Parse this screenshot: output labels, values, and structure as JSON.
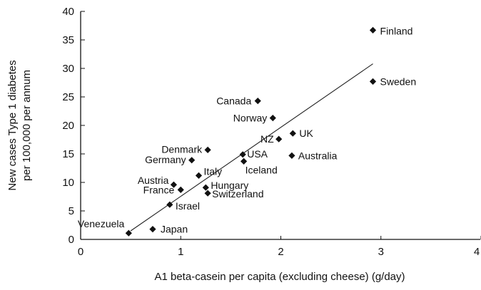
{
  "chart_data": {
    "type": "scatter",
    "title": "",
    "xlabel": "A1 beta-casein per capita (excluding cheese) (g/day)",
    "ylabel_lines": [
      "New cases Type 1 diabetes",
      "per 100,000 per annum"
    ],
    "xlim": [
      0,
      4
    ],
    "ylim": [
      0,
      40
    ],
    "x_ticks": [
      "0",
      "1",
      "2",
      "3",
      "4"
    ],
    "y_ticks": [
      "0",
      "5",
      "10",
      "15",
      "20",
      "25",
      "30",
      "35",
      "40"
    ],
    "grid": false,
    "legend": "none",
    "marker": "diamond",
    "points": [
      {
        "label": "Venezuela",
        "x": 0.48,
        "y": 1.1
      },
      {
        "label": "Japan",
        "x": 0.72,
        "y": 1.8
      },
      {
        "label": "Israel",
        "x": 0.89,
        "y": 6.1
      },
      {
        "label": "Austria",
        "x": 0.93,
        "y": 9.6
      },
      {
        "label": "France",
        "x": 1.0,
        "y": 8.7
      },
      {
        "label": "Germany",
        "x": 1.11,
        "y": 13.9
      },
      {
        "label": "Italy",
        "x": 1.18,
        "y": 11.2
      },
      {
        "label": "Denmark",
        "x": 1.27,
        "y": 15.7
      },
      {
        "label": "Hungary",
        "x": 1.25,
        "y": 9.1
      },
      {
        "label": "Switzerland",
        "x": 1.27,
        "y": 8.1
      },
      {
        "label": "USA",
        "x": 1.62,
        "y": 14.9
      },
      {
        "label": "Iceland",
        "x": 1.63,
        "y": 13.7
      },
      {
        "label": "Canada",
        "x": 1.77,
        "y": 24.3
      },
      {
        "label": "Norway",
        "x": 1.92,
        "y": 21.3
      },
      {
        "label": "NZ",
        "x": 1.98,
        "y": 17.6
      },
      {
        "label": "UK",
        "x": 2.12,
        "y": 18.6
      },
      {
        "label": "Australia",
        "x": 2.11,
        "y": 14.7
      },
      {
        "label": "Finland",
        "x": 2.92,
        "y": 36.7
      },
      {
        "label": "Sweden",
        "x": 2.92,
        "y": 27.7
      }
    ],
    "trendline": {
      "x0": 0.5,
      "y0": 1.5,
      "x1": 2.92,
      "y1": 30.8
    },
    "colors": {
      "marker": "#111111",
      "line": "#222222",
      "axis": "#111111"
    }
  }
}
